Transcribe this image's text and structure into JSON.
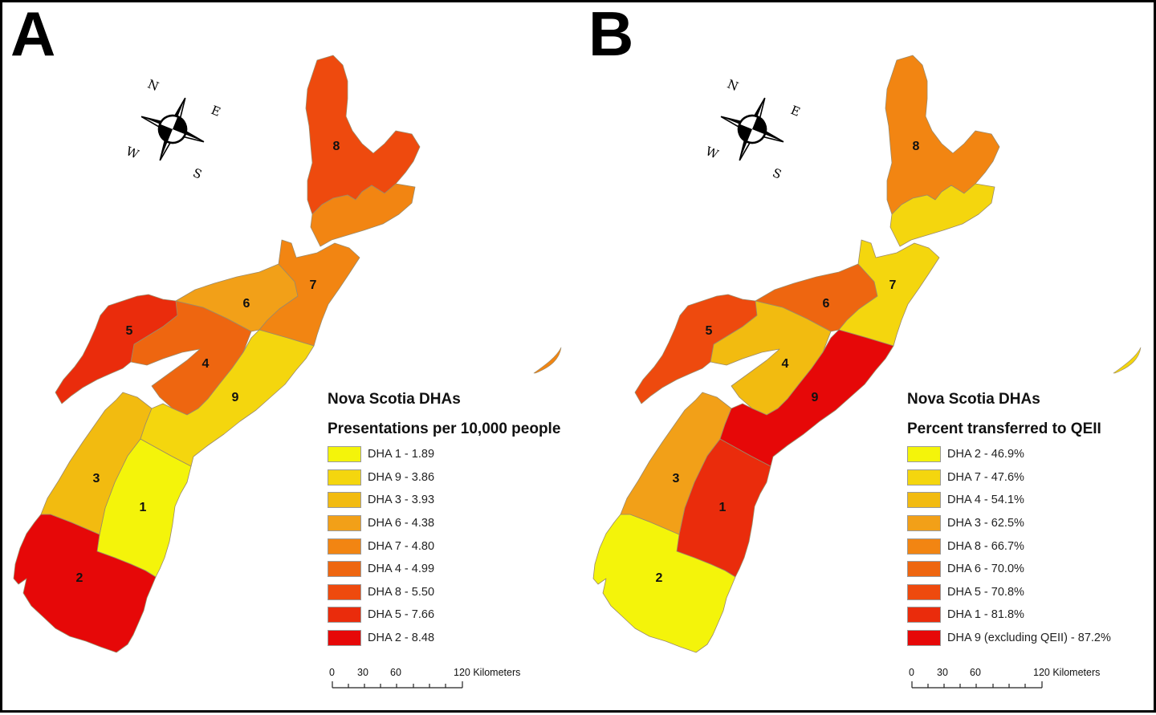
{
  "panels": [
    {
      "letter": "A",
      "legend_title": "Nova Scotia DHAs",
      "legend_subtitle": "Presentations per 10,000 people",
      "legend": [
        {
          "label": "DHA 1 - 1.89",
          "color": "#f4f40a"
        },
        {
          "label": "DHA 9 - 3.86",
          "color": "#f4d60e"
        },
        {
          "label": "DHA 3 - 3.93",
          "color": "#f2bb10"
        },
        {
          "label": "DHA 6 - 4.38",
          "color": "#f2a018"
        },
        {
          "label": "DHA 7 - 4.80",
          "color": "#f28512"
        },
        {
          "label": "DHA 4 - 4.99",
          "color": "#ee6610"
        },
        {
          "label": "DHA 8 - 5.50",
          "color": "#ee4a0e"
        },
        {
          "label": "DHA 5 - 7.66",
          "color": "#ea2c0c"
        },
        {
          "label": "DHA 2 - 8.48",
          "color": "#e60808"
        }
      ],
      "region_colors": {
        "1": "#f4f40a",
        "2": "#e60808",
        "3": "#f2bb10",
        "4": "#ee6610",
        "5": "#ea2c0c",
        "6": "#f2a018",
        "7": "#f28512",
        "8": "#ee4a0e",
        "8s": "#f28512",
        "9": "#f4d60e"
      }
    },
    {
      "letter": "B",
      "legend_title": "Nova Scotia DHAs",
      "legend_subtitle": "Percent transferred to QEII",
      "legend": [
        {
          "label": "DHA 2 - 46.9%",
          "color": "#f4f40a"
        },
        {
          "label": "DHA 7 - 47.6%",
          "color": "#f4d60e"
        },
        {
          "label": "DHA 4 - 54.1%",
          "color": "#f2bb10"
        },
        {
          "label": "DHA 3 - 62.5%",
          "color": "#f2a018"
        },
        {
          "label": "DHA 8 - 66.7%",
          "color": "#f28512"
        },
        {
          "label": "DHA 6 - 70.0%",
          "color": "#ee6610"
        },
        {
          "label": "DHA 5 - 70.8%",
          "color": "#ee4a0e"
        },
        {
          "label": "DHA 1 - 81.8%",
          "color": "#ea2c0c"
        },
        {
          "label": "DHA 9 (excluding QEII) - 87.2%",
          "color": "#e60808"
        }
      ],
      "region_colors": {
        "1": "#ea2c0c",
        "2": "#f4f40a",
        "3": "#f2a018",
        "4": "#f2bb10",
        "5": "#ee4a0e",
        "6": "#ee6610",
        "7": "#f4d60e",
        "8": "#f28512",
        "8s": "#f4d60e",
        "9": "#e60808"
      }
    }
  ],
  "region_labels": [
    "1",
    "2",
    "3",
    "4",
    "5",
    "6",
    "7",
    "8",
    "9"
  ],
  "compass": {
    "n": "N",
    "e": "E",
    "s": "S",
    "w": "W"
  },
  "scale_bar": {
    "ticks": [
      "0",
      "30",
      "60"
    ],
    "end_label": "120 Kilometers"
  }
}
